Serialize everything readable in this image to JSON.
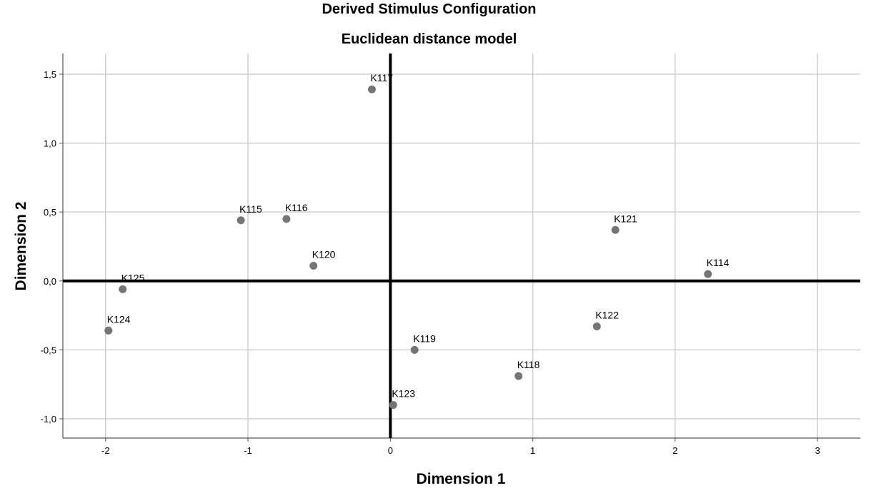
{
  "chart_data": {
    "type": "scatter",
    "title": "Derived Stimulus Configuration",
    "subtitle": "Euclidean distance model",
    "xlabel": "Dimension 1",
    "ylabel": "Dimension 2",
    "xlim": [
      -2.3,
      3.3
    ],
    "ylim": [
      -1.14,
      1.65
    ],
    "x_ticks": [
      {
        "value": -2,
        "label": "-2"
      },
      {
        "value": -1,
        "label": "-1"
      },
      {
        "value": 0,
        "label": "0"
      },
      {
        "value": 1,
        "label": "1"
      },
      {
        "value": 2,
        "label": "2"
      },
      {
        "value": 3,
        "label": "3"
      }
    ],
    "y_ticks": [
      {
        "value": 1.5,
        "label": "1,5"
      },
      {
        "value": 1.0,
        "label": "1,0"
      },
      {
        "value": 0.5,
        "label": "0,5"
      },
      {
        "value": 0.0,
        "label": "0,0"
      },
      {
        "value": -0.5,
        "label": "-0,5"
      },
      {
        "value": -1.0,
        "label": "-1,0"
      }
    ],
    "grid": true,
    "marker_color": "#757575",
    "points": [
      {
        "label": "K117",
        "x": -0.13,
        "y": 1.39
      },
      {
        "label": "K115",
        "x": -1.05,
        "y": 0.44
      },
      {
        "label": "K116",
        "x": -0.73,
        "y": 0.45
      },
      {
        "label": "K121",
        "x": 1.58,
        "y": 0.37
      },
      {
        "label": "K120",
        "x": -0.54,
        "y": 0.11
      },
      {
        "label": "K114",
        "x": 2.23,
        "y": 0.05
      },
      {
        "label": "K125",
        "x": -1.88,
        "y": -0.06
      },
      {
        "label": "K124",
        "x": -1.98,
        "y": -0.36
      },
      {
        "label": "K122",
        "x": 1.45,
        "y": -0.33
      },
      {
        "label": "K119",
        "x": 0.17,
        "y": -0.5
      },
      {
        "label": "K118",
        "x": 0.9,
        "y": -0.69
      },
      {
        "label": "K123",
        "x": 0.02,
        "y": -0.9
      }
    ]
  }
}
